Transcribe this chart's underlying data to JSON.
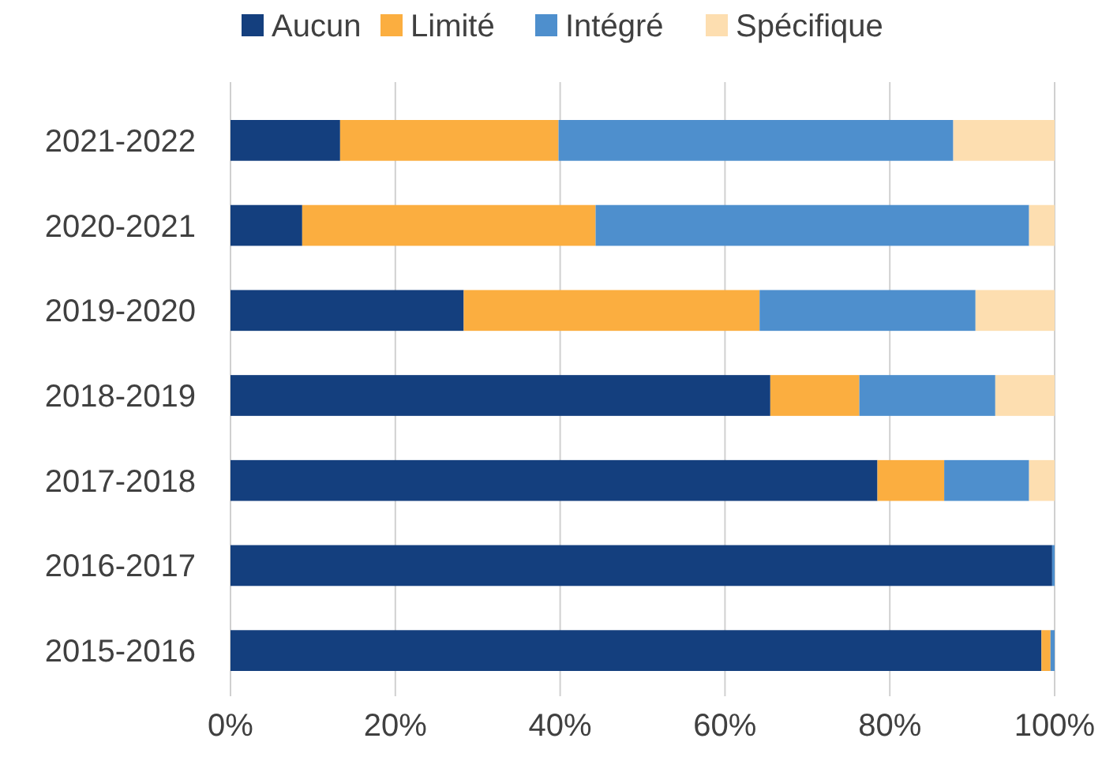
{
  "chart_data": {
    "type": "bar",
    "orientation": "horizontal",
    "stacked": true,
    "categories": [
      "2021-2022",
      "2020-2021",
      "2019-2020",
      "2018-2019",
      "2017-2018",
      "2016-2017",
      "2015-2016"
    ],
    "series": [
      {
        "name": "Aucun",
        "color": "#143f7e",
        "values": [
          13.3,
          8.7,
          28.3,
          65.5,
          78.5,
          99.7,
          98.4
        ]
      },
      {
        "name": "Limité",
        "color": "#fbae40",
        "values": [
          26.5,
          35.6,
          35.9,
          10.8,
          8.1,
          0,
          1.1
        ]
      },
      {
        "name": "Intégré",
        "color": "#4e8fcd",
        "values": [
          47.9,
          52.6,
          26.2,
          16.5,
          10.3,
          0.3,
          0.5
        ]
      },
      {
        "name": "Spécifique",
        "color": "#fddeb0",
        "values": [
          12.3,
          3.1,
          9.6,
          7.2,
          3.1,
          0,
          0
        ]
      }
    ],
    "xlim": [
      0,
      100
    ],
    "xticks": [
      {
        "value": 0,
        "label": "0%"
      },
      {
        "value": 20,
        "label": "20%"
      },
      {
        "value": 40,
        "label": "40%"
      },
      {
        "value": 60,
        "label": "60%"
      },
      {
        "value": 80,
        "label": "80%"
      },
      {
        "value": 100,
        "label": "100%"
      }
    ],
    "grid": "x",
    "legend": "top"
  }
}
